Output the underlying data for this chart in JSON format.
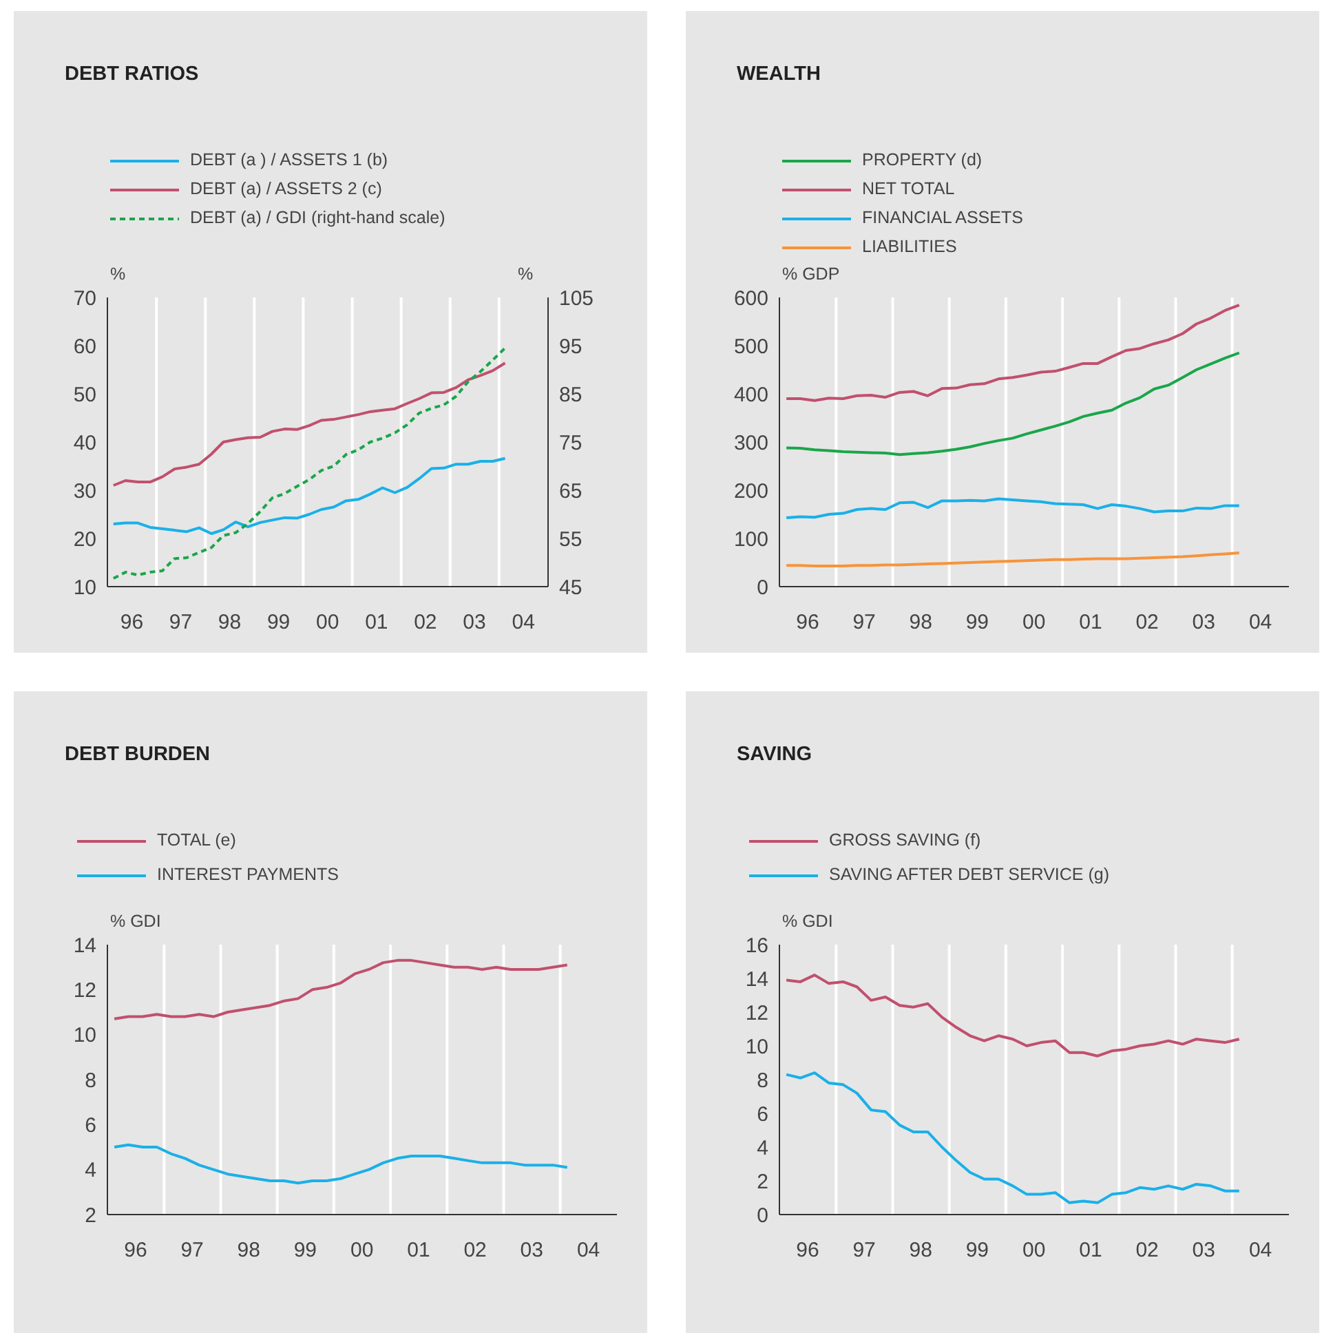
{
  "chart_data": [
    {
      "type": "line",
      "title": "DEBT RATIOS",
      "ylabel": "%",
      "y2label": "%",
      "legend": "top",
      "grid": true,
      "x": [
        "1996-02-15",
        "1996-05-15",
        "1996-08-15",
        "1996-11-15",
        "1997-02-15",
        "1997-05-15",
        "1997-08-15",
        "1997-11-15",
        "1998-02-15",
        "1998-05-15",
        "1998-08-15",
        "1998-11-15",
        "1999-02-15",
        "1999-05-15",
        "1999-08-15",
        "1999-11-15",
        "2000-02-15",
        "2000-05-15",
        "2000-08-15",
        "2000-11-15",
        "2001-02-15",
        "2001-05-15",
        "2001-08-15",
        "2001-11-15",
        "2002-02-15",
        "2002-05-15",
        "2002-08-15",
        "2002-11-15",
        "2003-02-15",
        "2003-05-15",
        "2003-08-15",
        "2003-11-15",
        "2004-02-15"
      ],
      "xlim": [
        "1996-01-01",
        "2005-01-01"
      ],
      "xticks": [
        {
          "value": "1996-07-01",
          "label": "96"
        },
        {
          "value": "1997-01-01",
          "label": null
        },
        {
          "value": "1997-07-01",
          "label": "97"
        },
        {
          "value": "1998-01-01",
          "label": null
        },
        {
          "value": "1998-07-01",
          "label": "98"
        },
        {
          "value": "1999-01-01",
          "label": null
        },
        {
          "value": "1999-07-01",
          "label": "99"
        },
        {
          "value": "2000-01-01",
          "label": null
        },
        {
          "value": "2000-07-01",
          "label": "00"
        },
        {
          "value": "2001-01-01",
          "label": null
        },
        {
          "value": "2001-07-01",
          "label": "01"
        },
        {
          "value": "2002-01-01",
          "label": null
        },
        {
          "value": "2002-07-01",
          "label": "02"
        },
        {
          "value": "2003-01-01",
          "label": null
        },
        {
          "value": "2003-07-01",
          "label": "03"
        },
        {
          "value": "2004-01-01",
          "label": null
        },
        {
          "value": "2004-07-01",
          "label": "04"
        }
      ],
      "ylim": [
        10,
        70
      ],
      "yticks": [
        10,
        20,
        30,
        40,
        50,
        60,
        70
      ],
      "y2lim": [
        45,
        105
      ],
      "y2ticks": [
        45,
        55,
        65,
        75,
        85,
        95,
        105
      ],
      "series": [
        {
          "name": "DEBT (a ) / ASSETS 1 (b)",
          "color": "#1ab0e8",
          "values": [
            23,
            23.2,
            23.2,
            22.3,
            22,
            21.7,
            21.4,
            22.2,
            21,
            21.8,
            23.4,
            22.4,
            23.3,
            23.8,
            24.3,
            24.2,
            25,
            26,
            26.5,
            27.8,
            28.1,
            29.2,
            30.5,
            29.5,
            30.6,
            32.4,
            34.5,
            34.6,
            35.4,
            35.4,
            36,
            36,
            36.6
          ]
        },
        {
          "name": "DEBT (a) / ASSETS 2 (c)",
          "color": "#c0506e",
          "values": [
            31,
            32,
            31.7,
            31.7,
            32.8,
            34.4,
            34.8,
            35.4,
            37.5,
            40,
            40.5,
            40.9,
            41,
            42.2,
            42.7,
            42.6,
            43.4,
            44.5,
            44.7,
            45.2,
            45.7,
            46.3,
            46.6,
            46.9,
            48,
            49,
            50.2,
            50.3,
            51.3,
            52.9,
            53.8,
            54.8,
            56.4
          ]
        },
        {
          "name": "DEBT (a) / GDI (right-hand scale)",
          "color": "#1aa64a",
          "axis": "y2",
          "line_style": "dashed",
          "values": [
            46.7,
            48,
            47.4,
            48,
            48.3,
            50.8,
            51,
            52.1,
            53.1,
            55.6,
            56.2,
            58.1,
            60.6,
            63.4,
            64.3,
            65.8,
            67.2,
            69.1,
            70,
            72.4,
            73.4,
            75,
            75.8,
            76.9,
            78.6,
            81,
            82,
            82.7,
            84.5,
            87.5,
            89.6,
            92,
            94.5
          ]
        }
      ]
    },
    {
      "type": "line",
      "title": "WEALTH",
      "ylabel": "% GDP",
      "legend": "top",
      "grid": true,
      "x": [
        "1996-02-15",
        "1996-05-15",
        "1996-08-15",
        "1996-11-15",
        "1997-02-15",
        "1997-05-15",
        "1997-08-15",
        "1997-11-15",
        "1998-02-15",
        "1998-05-15",
        "1998-08-15",
        "1998-11-15",
        "1999-02-15",
        "1999-05-15",
        "1999-08-15",
        "1999-11-15",
        "2000-02-15",
        "2000-05-15",
        "2000-08-15",
        "2000-11-15",
        "2001-02-15",
        "2001-05-15",
        "2001-08-15",
        "2001-11-15",
        "2002-02-15",
        "2002-05-15",
        "2002-08-15",
        "2002-11-15",
        "2003-02-15",
        "2003-05-15",
        "2003-08-15",
        "2003-11-15",
        "2004-02-15"
      ],
      "xlim": [
        "1996-01-01",
        "2005-01-01"
      ],
      "xticks": [
        {
          "value": "1996-07-01",
          "label": "96"
        },
        {
          "value": "1997-01-01",
          "label": null
        },
        {
          "value": "1997-07-01",
          "label": "97"
        },
        {
          "value": "1998-01-01",
          "label": null
        },
        {
          "value": "1998-07-01",
          "label": "98"
        },
        {
          "value": "1999-01-01",
          "label": null
        },
        {
          "value": "1999-07-01",
          "label": "99"
        },
        {
          "value": "2000-01-01",
          "label": null
        },
        {
          "value": "2000-07-01",
          "label": "00"
        },
        {
          "value": "2001-01-01",
          "label": null
        },
        {
          "value": "2001-07-01",
          "label": "01"
        },
        {
          "value": "2002-01-01",
          "label": null
        },
        {
          "value": "2002-07-01",
          "label": "02"
        },
        {
          "value": "2003-01-01",
          "label": null
        },
        {
          "value": "2003-07-01",
          "label": "03"
        },
        {
          "value": "2004-01-01",
          "label": null
        },
        {
          "value": "2004-07-01",
          "label": "04"
        }
      ],
      "ylim": [
        0,
        600
      ],
      "yticks": [
        0,
        100,
        200,
        300,
        400,
        500,
        600
      ],
      "series": [
        {
          "name": "PROPERTY (d)",
          "color": "#1aa64a",
          "values": [
            288,
            287,
            284,
            282,
            280,
            279,
            278,
            277,
            274,
            276,
            278,
            281,
            285,
            290,
            297,
            303,
            308,
            317,
            325,
            333,
            342,
            353,
            360,
            366,
            381,
            392,
            410,
            418,
            434,
            450,
            462,
            474,
            485
          ]
        },
        {
          "name": "NET TOTAL",
          "color": "#c0506e",
          "values": [
            390,
            390,
            386,
            391,
            390,
            396,
            397,
            393,
            403,
            405,
            396,
            411,
            412,
            419,
            421,
            431,
            434,
            439,
            445,
            447,
            455,
            463,
            463,
            477,
            490,
            494,
            504,
            512,
            525,
            545,
            557,
            573,
            584
          ]
        },
        {
          "name": "FINANCIAL ASSETS",
          "color": "#1ab0e8",
          "values": [
            143,
            145,
            144,
            150,
            152,
            160,
            162,
            160,
            174,
            175,
            164,
            178,
            178,
            179,
            178,
            182,
            180,
            178,
            176,
            172,
            171,
            170,
            162,
            170,
            167,
            162,
            155,
            157,
            157,
            163,
            162,
            168,
            168
          ]
        },
        {
          "name": "LIABILITIES",
          "color": "#f7943a",
          "values": [
            44,
            44,
            43,
            43,
            43,
            44,
            44,
            45,
            45,
            46,
            47,
            48,
            49,
            50,
            51,
            52,
            53,
            54,
            55,
            56,
            56,
            57,
            58,
            58,
            58,
            59,
            60,
            61,
            62,
            64,
            66,
            68,
            70
          ]
        }
      ]
    },
    {
      "type": "line",
      "title": "DEBT BURDEN",
      "ylabel": "% GDI",
      "legend": "top",
      "grid": true,
      "x": [
        "1996-02-15",
        "1996-05-15",
        "1996-08-15",
        "1996-11-15",
        "1997-02-15",
        "1997-05-15",
        "1997-08-15",
        "1997-11-15",
        "1998-02-15",
        "1998-05-15",
        "1998-08-15",
        "1998-11-15",
        "1999-02-15",
        "1999-05-15",
        "1999-08-15",
        "1999-11-15",
        "2000-02-15",
        "2000-05-15",
        "2000-08-15",
        "2000-11-15",
        "2001-02-15",
        "2001-05-15",
        "2001-08-15",
        "2001-11-15",
        "2002-02-15",
        "2002-05-15",
        "2002-08-15",
        "2002-11-15",
        "2003-02-15",
        "2003-05-15",
        "2003-08-15",
        "2003-11-15",
        "2004-02-15"
      ],
      "xlim": [
        "1996-01-01",
        "2005-01-01"
      ],
      "xticks": [
        {
          "value": "1996-07-01",
          "label": "96"
        },
        {
          "value": "1997-01-01",
          "label": null
        },
        {
          "value": "1997-07-01",
          "label": "97"
        },
        {
          "value": "1998-01-01",
          "label": null
        },
        {
          "value": "1998-07-01",
          "label": "98"
        },
        {
          "value": "1999-01-01",
          "label": null
        },
        {
          "value": "1999-07-01",
          "label": "99"
        },
        {
          "value": "2000-01-01",
          "label": null
        },
        {
          "value": "2000-07-01",
          "label": "00"
        },
        {
          "value": "2001-01-01",
          "label": null
        },
        {
          "value": "2001-07-01",
          "label": "01"
        },
        {
          "value": "2002-01-01",
          "label": null
        },
        {
          "value": "2002-07-01",
          "label": "02"
        },
        {
          "value": "2003-01-01",
          "label": null
        },
        {
          "value": "2003-07-01",
          "label": "03"
        },
        {
          "value": "2004-01-01",
          "label": null
        },
        {
          "value": "2004-07-01",
          "label": "04"
        }
      ],
      "ylim": [
        2,
        14
      ],
      "yticks": [
        2,
        4,
        6,
        8,
        10,
        12,
        14
      ],
      "series": [
        {
          "name": "TOTAL (e)",
          "color": "#c0506e",
          "values": [
            10.7,
            10.8,
            10.8,
            10.9,
            10.8,
            10.8,
            10.9,
            10.8,
            11,
            11.1,
            11.2,
            11.3,
            11.5,
            11.6,
            12,
            12.1,
            12.3,
            12.7,
            12.9,
            13.2,
            13.3,
            13.3,
            13.2,
            13.1,
            13,
            13,
            12.9,
            13,
            12.9,
            12.9,
            12.9,
            13,
            13.1
          ]
        },
        {
          "name": "INTEREST PAYMENTS",
          "color": "#1ab0e8",
          "values": [
            5,
            5.1,
            5,
            5,
            4.7,
            4.5,
            4.2,
            4,
            3.8,
            3.7,
            3.6,
            3.5,
            3.5,
            3.4,
            3.5,
            3.5,
            3.6,
            3.8,
            4,
            4.3,
            4.5,
            4.6,
            4.6,
            4.6,
            4.5,
            4.4,
            4.3,
            4.3,
            4.3,
            4.2,
            4.2,
            4.2,
            4.1
          ]
        }
      ]
    },
    {
      "type": "line",
      "title": "SAVING",
      "ylabel": "% GDI",
      "legend": "top",
      "grid": true,
      "x": [
        "1996-02-15",
        "1996-05-15",
        "1996-08-15",
        "1996-11-15",
        "1997-02-15",
        "1997-05-15",
        "1997-08-15",
        "1997-11-15",
        "1998-02-15",
        "1998-05-15",
        "1998-08-15",
        "1998-11-15",
        "1999-02-15",
        "1999-05-15",
        "1999-08-15",
        "1999-11-15",
        "2000-02-15",
        "2000-05-15",
        "2000-08-15",
        "2000-11-15",
        "2001-02-15",
        "2001-05-15",
        "2001-08-15",
        "2001-11-15",
        "2002-02-15",
        "2002-05-15",
        "2002-08-15",
        "2002-11-15",
        "2003-02-15",
        "2003-05-15",
        "2003-08-15",
        "2003-11-15",
        "2004-02-15"
      ],
      "xlim": [
        "1996-01-01",
        "2005-01-01"
      ],
      "xticks": [
        {
          "value": "1996-07-01",
          "label": "96"
        },
        {
          "value": "1997-01-01",
          "label": null
        },
        {
          "value": "1997-07-01",
          "label": "97"
        },
        {
          "value": "1998-01-01",
          "label": null
        },
        {
          "value": "1998-07-01",
          "label": "98"
        },
        {
          "value": "1999-01-01",
          "label": null
        },
        {
          "value": "1999-07-01",
          "label": "99"
        },
        {
          "value": "2000-01-01",
          "label": null
        },
        {
          "value": "2000-07-01",
          "label": "00"
        },
        {
          "value": "2001-01-01",
          "label": null
        },
        {
          "value": "2001-07-01",
          "label": "01"
        },
        {
          "value": "2002-01-01",
          "label": null
        },
        {
          "value": "2002-07-01",
          "label": "02"
        },
        {
          "value": "2003-01-01",
          "label": null
        },
        {
          "value": "2003-07-01",
          "label": "03"
        },
        {
          "value": "2004-01-01",
          "label": null
        },
        {
          "value": "2004-07-01",
          "label": "04"
        }
      ],
      "ylim": [
        0,
        16
      ],
      "yticks": [
        0,
        2,
        4,
        6,
        8,
        10,
        12,
        14,
        16
      ],
      "series": [
        {
          "name": "GROSS SAVING (f)",
          "color": "#c0506e",
          "values": [
            13.9,
            13.8,
            14.2,
            13.7,
            13.8,
            13.5,
            12.7,
            12.9,
            12.4,
            12.3,
            12.5,
            11.7,
            11.1,
            10.6,
            10.3,
            10.6,
            10.4,
            10,
            10.2,
            10.3,
            9.6,
            9.6,
            9.4,
            9.7,
            9.8,
            10,
            10.1,
            10.3,
            10.1,
            10.4,
            10.3,
            10.2,
            10.4
          ]
        },
        {
          "name": "SAVING AFTER DEBT SERVICE (g)",
          "color": "#1ab0e8",
          "values": [
            8.3,
            8.1,
            8.4,
            7.8,
            7.7,
            7.2,
            6.2,
            6.1,
            5.3,
            4.9,
            4.9,
            4,
            3.2,
            2.5,
            2.1,
            2.1,
            1.7,
            1.2,
            1.2,
            1.3,
            0.7,
            0.8,
            0.7,
            1.2,
            1.3,
            1.6,
            1.5,
            1.7,
            1.5,
            1.8,
            1.7,
            1.4,
            1.4
          ]
        }
      ]
    }
  ]
}
